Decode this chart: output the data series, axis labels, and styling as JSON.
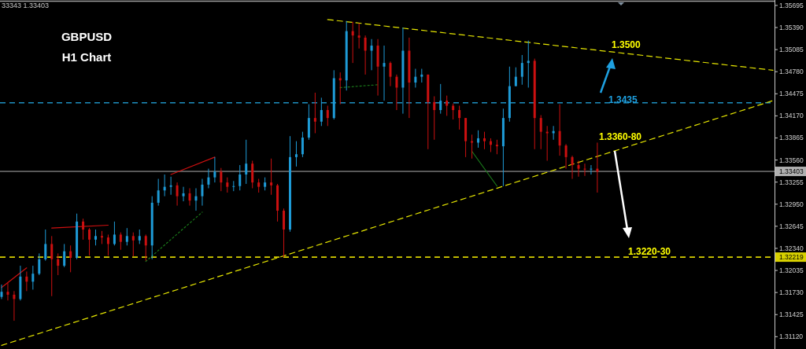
{
  "chart_data": {
    "type": "candlestick",
    "title": "GBPUSD",
    "subtitle": "H1 Chart",
    "annotations": [
      "33343 1.33403",
      "1.3500",
      "1.3435",
      "1.3360-80",
      "1.3220-30"
    ],
    "categories": [
      null,
      null,
      null,
      null,
      null,
      null,
      null,
      null,
      null,
      null,
      null,
      null,
      null,
      null,
      null,
      null,
      null,
      null,
      null,
      null,
      null,
      null,
      null,
      null,
      null,
      null,
      null,
      null,
      null,
      null,
      null,
      null,
      null,
      null,
      null,
      null,
      null,
      null,
      null,
      null,
      null,
      null,
      null,
      null,
      null,
      null,
      null,
      null,
      null,
      null,
      null,
      null,
      null,
      null,
      null,
      null,
      null,
      null,
      null,
      null,
      null,
      null,
      null,
      null,
      null,
      null,
      null,
      null,
      null,
      null,
      null,
      null,
      null,
      null,
      null,
      null,
      null,
      null,
      null,
      null,
      null,
      null,
      null,
      null,
      null,
      null,
      null,
      null,
      null,
      null,
      null,
      null,
      null,
      null,
      null,
      null,
      null,
      null,
      null,
      null,
      null,
      null,
      null,
      null,
      null,
      null,
      null,
      null,
      null,
      null,
      null,
      null,
      null,
      null,
      null,
      null,
      null,
      null,
      null,
      null,
      null,
      null,
      null,
      null
    ],
    "ohlc": [
      [
        1.3167,
        1.3184,
        1.3164,
        1.3174
      ],
      [
        1.3174,
        1.3186,
        1.3162,
        1.317
      ],
      [
        1.317,
        1.3175,
        1.3134,
        1.3164
      ],
      [
        1.3164,
        1.321,
        1.3162,
        1.3195
      ],
      [
        1.3195,
        1.3202,
        1.3175,
        1.3188
      ],
      [
        1.3188,
        1.321,
        1.3177,
        1.3199
      ],
      [
        1.3199,
        1.3227,
        1.3197,
        1.3219
      ],
      [
        1.3219,
        1.326,
        1.3217,
        1.324
      ],
      [
        1.324,
        1.3251,
        1.3168,
        1.3219
      ],
      [
        1.3219,
        1.3227,
        1.3197,
        1.321
      ],
      [
        1.321,
        1.324,
        1.3208,
        1.323
      ],
      [
        1.323,
        1.3238,
        1.3201,
        1.3221
      ],
      [
        1.3221,
        1.3282,
        1.3219,
        1.3271
      ],
      [
        1.3271,
        1.3275,
        1.3246,
        1.326
      ],
      [
        1.326,
        1.3262,
        1.3224,
        1.3246
      ],
      [
        1.3246,
        1.326,
        1.3238,
        1.3251
      ],
      [
        1.3251,
        1.3258,
        1.324,
        1.3249
      ],
      [
        1.3249,
        1.3253,
        1.3224,
        1.324
      ],
      [
        1.324,
        1.3271,
        1.3238,
        1.3253
      ],
      [
        1.3253,
        1.3256,
        1.3232,
        1.3243
      ],
      [
        1.3243,
        1.3262,
        1.3238,
        1.3251
      ],
      [
        1.3251,
        1.3256,
        1.3223,
        1.3245
      ],
      [
        1.3245,
        1.326,
        1.324,
        1.3251
      ],
      [
        1.3251,
        1.3253,
        1.3217,
        1.3238
      ],
      [
        1.3238,
        1.3306,
        1.3219,
        1.3297
      ],
      [
        1.3297,
        1.333,
        1.3293,
        1.3314
      ],
      [
        1.3314,
        1.3336,
        1.3306,
        1.3319
      ],
      [
        1.3319,
        1.3333,
        1.3308,
        1.3321
      ],
      [
        1.3321,
        1.3325,
        1.3293,
        1.3306
      ],
      [
        1.3306,
        1.3319,
        1.3299,
        1.331
      ],
      [
        1.331,
        1.3317,
        1.3293,
        1.33
      ],
      [
        1.33,
        1.3317,
        1.3286,
        1.3306
      ],
      [
        1.3306,
        1.333,
        1.3293,
        1.3322
      ],
      [
        1.3322,
        1.3344,
        1.3317,
        1.3332
      ],
      [
        1.3332,
        1.336,
        1.3325,
        1.334
      ],
      [
        1.334,
        1.3345,
        1.3313,
        1.3325
      ],
      [
        1.3325,
        1.3332,
        1.3311,
        1.3319
      ],
      [
        1.3319,
        1.3327,
        1.3313,
        1.332
      ],
      [
        1.332,
        1.3349,
        1.3314,
        1.3336
      ],
      [
        1.3336,
        1.3384,
        1.3323,
        1.3351
      ],
      [
        1.3351,
        1.3355,
        1.3317,
        1.3325
      ],
      [
        1.3325,
        1.333,
        1.3311,
        1.3319
      ],
      [
        1.3319,
        1.3332,
        1.3314,
        1.3325
      ],
      [
        1.3325,
        1.3358,
        1.3308,
        1.3321
      ],
      [
        1.3321,
        1.3323,
        1.3271,
        1.3286
      ],
      [
        1.3286,
        1.3289,
        1.3222,
        1.326
      ],
      [
        1.326,
        1.3389,
        1.3257,
        1.336
      ],
      [
        1.336,
        1.3382,
        1.3347,
        1.3364
      ],
      [
        1.3364,
        1.3395,
        1.336,
        1.3387
      ],
      [
        1.3387,
        1.3433,
        1.3384,
        1.3414
      ],
      [
        1.3414,
        1.3449,
        1.3393,
        1.3409
      ],
      [
        1.3409,
        1.3442,
        1.3403,
        1.3425
      ],
      [
        1.3425,
        1.3431,
        1.3403,
        1.3414
      ],
      [
        1.3414,
        1.348,
        1.3412,
        1.3469
      ],
      [
        1.3469,
        1.3477,
        1.3433,
        1.3466
      ],
      [
        1.3466,
        1.3548,
        1.3452,
        1.3534
      ],
      [
        1.3534,
        1.3547,
        1.349,
        1.3528
      ],
      [
        1.3528,
        1.3545,
        1.351,
        1.3525
      ],
      [
        1.3525,
        1.3528,
        1.3474,
        1.3507
      ],
      [
        1.3507,
        1.3523,
        1.348,
        1.3514
      ],
      [
        1.3514,
        1.3523,
        1.3445,
        1.3485
      ],
      [
        1.3485,
        1.3514,
        1.3438,
        1.349
      ],
      [
        1.349,
        1.3492,
        1.3458,
        1.3471
      ],
      [
        1.3471,
        1.3474,
        1.3425,
        1.3456
      ],
      [
        1.3456,
        1.3539,
        1.342,
        1.3507
      ],
      [
        1.3507,
        1.3525,
        1.3414,
        1.3463
      ],
      [
        1.3463,
        1.3482,
        1.3456,
        1.3471
      ],
      [
        1.3471,
        1.3482,
        1.3463,
        1.3474
      ],
      [
        1.3474,
        1.3474,
        1.3371,
        1.3436
      ],
      [
        1.3436,
        1.3444,
        1.3384,
        1.3425
      ],
      [
        1.3425,
        1.3461,
        1.342,
        1.3438
      ],
      [
        1.3438,
        1.3445,
        1.3417,
        1.3431
      ],
      [
        1.3431,
        1.3434,
        1.3412,
        1.3425
      ],
      [
        1.3425,
        1.3431,
        1.3398,
        1.3414
      ],
      [
        1.3414,
        1.3414,
        1.336,
        1.3382
      ],
      [
        1.3382,
        1.3391,
        1.3358,
        1.338
      ],
      [
        1.338,
        1.3397,
        1.3373,
        1.3386
      ],
      [
        1.3386,
        1.3395,
        1.3371,
        1.3382
      ],
      [
        1.3382,
        1.3386,
        1.3367,
        1.3377
      ],
      [
        1.3377,
        1.3384,
        1.3364,
        1.3375
      ],
      [
        1.3375,
        1.3427,
        1.332,
        1.3414
      ],
      [
        1.3414,
        1.3485,
        1.3409,
        1.3458
      ],
      [
        1.3458,
        1.3484,
        1.3458,
        1.3471
      ],
      [
        1.3471,
        1.3501,
        1.346,
        1.349
      ],
      [
        1.349,
        1.3521,
        1.3456,
        1.3493
      ],
      [
        1.3493,
        1.3496,
        1.3371,
        1.3414
      ],
      [
        1.3414,
        1.3418,
        1.3371,
        1.3395
      ],
      [
        1.3395,
        1.3403,
        1.3355,
        1.3393
      ],
      [
        1.3393,
        1.3403,
        1.3384,
        1.3396
      ],
      [
        1.3396,
        1.3433,
        1.3362,
        1.3376
      ],
      [
        1.3376,
        1.3378,
        1.3344,
        1.336
      ],
      [
        1.336,
        1.3362,
        1.333,
        1.3349
      ],
      [
        1.3349,
        1.3355,
        1.3333,
        1.3344
      ],
      [
        1.3344,
        1.3351,
        1.3334,
        1.3343
      ],
      [
        1.3343,
        1.3349,
        1.3336,
        1.3344
      ],
      [
        1.3344,
        1.338,
        1.3311,
        1.334
      ],
      null,
      null,
      null,
      null,
      null,
      null,
      null,
      null,
      null,
      null,
      null,
      null,
      null,
      null,
      null,
      null,
      null,
      null,
      null,
      null,
      null,
      null,
      null,
      null,
      null,
      null,
      null,
      null
    ],
    "colors": [
      "#1e9bd7",
      "#cc1010",
      "#cc1010",
      "#1e9bd7",
      "#cc1010",
      "#1e9bd7",
      "#1e9bd7",
      "#1e9bd7",
      "#cc1010",
      "#cc1010",
      "#1e9bd7",
      "#cc1010",
      "#1e9bd7",
      "#cc1010",
      "#cc1010",
      "#1e9bd7",
      "#cc1010",
      "#cc1010",
      "#1e9bd7",
      "#cc1010",
      "#1e9bd7",
      "#cc1010",
      "#1e9bd7",
      "#cc1010",
      "#1e9bd7",
      "#1e9bd7",
      "#1e9bd7",
      "#1e9bd7",
      "#cc1010",
      "#1e9bd7",
      "#cc1010",
      "#1e9bd7",
      "#1e9bd7",
      "#1e9bd7",
      "#1e9bd7",
      "#cc1010",
      "#cc1010",
      "#1e9bd7",
      "#1e9bd7",
      "#1e9bd7",
      "#cc1010",
      "#cc1010",
      "#1e9bd7",
      "#cc1010",
      "#cc1010",
      "#cc1010",
      "#1e9bd7",
      "#1e9bd7",
      "#1e9bd7",
      "#1e9bd7",
      "#cc1010",
      "#1e9bd7",
      "#cc1010",
      "#1e9bd7",
      "#cc1010",
      "#1e9bd7",
      "#cc1010",
      "#cc1010",
      "#cc1010",
      "#1e9bd7",
      "#cc1010",
      "#1e9bd7",
      "#cc1010",
      "#cc1010",
      "#1e9bd7",
      "#cc1010",
      "#1e9bd7",
      "#1e9bd7",
      "#cc1010",
      "#cc1010",
      "#1e9bd7",
      "#cc1010",
      "#cc1010",
      "#cc1010",
      "#cc1010",
      "#cc1010",
      "#1e9bd7",
      "#cc1010",
      "#cc1010",
      "#cc1010",
      "#1e9bd7",
      "#1e9bd7",
      "#1e9bd7",
      "#1e9bd7",
      "#1e9bd7",
      "#cc1010",
      "#cc1010",
      "#cc1010",
      "#1e9bd7",
      "#cc1010",
      "#cc1010",
      "#cc1010",
      "#cc1010",
      "#cc1010",
      "#1e9bd7",
      "#cc1010",
      null,
      null,
      null,
      null,
      null,
      null,
      null,
      null,
      null,
      null,
      null,
      null,
      null,
      null,
      null,
      null,
      null,
      null,
      null,
      null,
      null,
      null,
      null,
      null,
      null,
      null,
      null,
      null
    ],
    "series": [
      {
        "type": "line",
        "color": "#e6e600",
        "line_style": "dashed",
        "values": [
          null,
          null,
          null,
          null,
          null,
          null,
          null,
          null,
          null,
          null,
          null,
          null,
          null,
          null,
          null,
          null,
          null,
          null,
          null,
          null,
          null,
          null,
          null,
          null,
          null,
          null,
          null,
          null,
          null,
          null,
          null,
          null,
          null,
          null,
          null,
          null,
          null,
          null,
          null,
          null,
          null,
          null,
          null,
          null,
          null,
          null,
          null,
          null,
          null,
          null,
          null,
          null,
          1.355,
          null,
          null,
          null,
          null,
          null,
          null,
          null,
          null,
          null,
          null,
          null,
          null,
          null,
          null,
          null,
          null,
          null,
          null,
          null,
          null,
          null,
          null,
          null,
          null,
          null,
          null,
          null,
          null,
          null,
          null,
          null,
          null,
          null,
          null,
          null,
          null,
          null,
          null,
          null,
          null,
          null,
          null,
          null,
          null,
          null,
          null,
          null,
          null,
          null,
          null,
          null,
          null,
          null,
          null,
          null,
          null,
          null,
          null,
          null,
          null,
          null,
          null,
          null,
          null,
          null,
          null,
          null,
          null,
          null,
          null,
          1.348
        ]
      },
      {
        "type": "line",
        "color": "#e6e600",
        "line_style": "dashed",
        "values": [
          1.31,
          null,
          null,
          null,
          null,
          null,
          null,
          null,
          null,
          null,
          null,
          null,
          null,
          null,
          null,
          null,
          null,
          null,
          null,
          null,
          null,
          null,
          null,
          null,
          null,
          null,
          null,
          null,
          null,
          null,
          null,
          null,
          null,
          null,
          null,
          null,
          null,
          null,
          null,
          null,
          null,
          null,
          null,
          null,
          null,
          null,
          null,
          null,
          null,
          null,
          null,
          null,
          null,
          null,
          null,
          null,
          null,
          null,
          null,
          null,
          null,
          null,
          null,
          null,
          null,
          null,
          null,
          null,
          null,
          null,
          null,
          null,
          null,
          null,
          null,
          null,
          null,
          null,
          null,
          null,
          null,
          null,
          null,
          null,
          null,
          null,
          null,
          null,
          null,
          null,
          null,
          null,
          null,
          null,
          null,
          null,
          null,
          null,
          null,
          null,
          null,
          null,
          null,
          null,
          null,
          null,
          null,
          null,
          null,
          null,
          null,
          null,
          null,
          null,
          null,
          null,
          null,
          null,
          null,
          null,
          null,
          null,
          null,
          1.3438
        ]
      },
      {
        "type": "line",
        "color": "#d01010",
        "line_style": "solid",
        "values": [
          1.318,
          null,
          null,
          null,
          1.3207,
          null,
          null,
          null,
          null,
          null,
          null,
          null,
          null,
          null,
          null,
          null,
          null,
          null,
          null,
          null,
          null,
          null,
          null,
          null,
          null,
          null,
          null,
          null,
          null,
          null,
          null,
          null,
          null,
          null,
          null,
          null,
          null,
          null,
          null,
          null,
          null,
          null,
          null,
          null,
          null,
          null,
          null,
          null,
          null,
          null,
          null,
          null,
          null,
          null,
          null,
          null,
          null,
          null,
          null,
          null,
          null,
          null,
          null,
          null,
          null,
          null,
          null,
          null,
          null,
          null,
          null,
          null,
          null,
          null,
          null,
          null,
          null,
          null,
          null,
          null,
          null,
          null,
          null,
          null,
          null,
          null,
          null,
          null,
          null,
          null,
          null,
          null,
          null,
          null,
          null,
          null,
          null,
          null,
          null,
          null,
          null,
          null,
          null,
          null,
          null,
          null,
          null,
          null,
          null,
          null,
          null,
          null,
          null,
          null,
          null,
          null,
          null,
          null,
          null,
          null,
          null,
          null,
          null,
          null
        ]
      },
      {
        "type": "line",
        "color": "#d01010",
        "line_style": "solid",
        "values": [
          null,
          null,
          null,
          null,
          null,
          null,
          null,
          null,
          1.3262,
          null,
          null,
          null,
          null,
          null,
          null,
          null,
          null,
          1.3266,
          null,
          null,
          null,
          null,
          null,
          null,
          null,
          null,
          null,
          null,
          null,
          null,
          null,
          null,
          null,
          null,
          null,
          null,
          null,
          null,
          null,
          null,
          null,
          null,
          null,
          null,
          null,
          null,
          null,
          null,
          null,
          null,
          null,
          null,
          null,
          null,
          null,
          null,
          null,
          null,
          null,
          null,
          null,
          null,
          null,
          null,
          null,
          null,
          null,
          null,
          null,
          null,
          null,
          null,
          null,
          null,
          null,
          null,
          null,
          null,
          null,
          null,
          null,
          null,
          null,
          null,
          null,
          null,
          null,
          null,
          null,
          null,
          null,
          null,
          null,
          null,
          null,
          null,
          null,
          null,
          null,
          null,
          null,
          null,
          null,
          null,
          null,
          null,
          null,
          null,
          null,
          null,
          null,
          null,
          null,
          null,
          null,
          null,
          null,
          null,
          null,
          null,
          null,
          null,
          null,
          null
        ]
      },
      {
        "type": "line",
        "color": "#d01010",
        "line_style": "solid",
        "values": [
          null,
          null,
          null,
          null,
          null,
          null,
          null,
          null,
          null,
          null,
          null,
          null,
          null,
          null,
          null,
          null,
          null,
          null,
          null,
          null,
          null,
          null,
          null,
          null,
          null,
          null,
          null,
          1.3336,
          null,
          null,
          null,
          null,
          null,
          null,
          1.336,
          null,
          null,
          null,
          null,
          null,
          null,
          null,
          null,
          null,
          null,
          null,
          null,
          null,
          null,
          null,
          null,
          null,
          null,
          null,
          null,
          null,
          null,
          null,
          null,
          null,
          null,
          null,
          null,
          null,
          null,
          null,
          null,
          null,
          null,
          null,
          null,
          null,
          null,
          null,
          null,
          null,
          null,
          null,
          null,
          null,
          null,
          null,
          null,
          null,
          null,
          null,
          null,
          null,
          null,
          null,
          null,
          null,
          null,
          null,
          null,
          null,
          null,
          null,
          null,
          null,
          null,
          null,
          null,
          null,
          null,
          null,
          null,
          null,
          null,
          null,
          null,
          null,
          null,
          null,
          null,
          null,
          null,
          null,
          null,
          null,
          null,
          null,
          null,
          null
        ]
      },
      {
        "type": "line",
        "color": "#1a7a1a",
        "line_style": "dotted",
        "values": [
          null,
          null,
          null,
          null,
          null,
          null,
          null,
          null,
          null,
          null,
          null,
          null,
          null,
          null,
          null,
          null,
          null,
          null,
          null,
          null,
          null,
          null,
          null,
          1.3216,
          null,
          null,
          null,
          null,
          null,
          null,
          null,
          null,
          1.3284,
          null,
          null,
          null,
          null,
          null,
          null,
          null,
          null,
          null,
          null,
          null,
          null,
          null,
          null,
          null,
          null,
          null,
          null,
          null,
          null,
          null,
          null,
          null,
          null,
          null,
          null,
          null,
          null,
          null,
          null,
          null,
          null,
          null,
          null,
          null,
          null,
          null,
          null,
          null,
          null,
          null,
          null,
          null,
          null,
          null,
          null,
          null,
          null,
          null,
          null,
          null,
          null,
          null,
          null,
          null,
          null,
          null,
          null,
          null,
          null,
          null,
          null,
          null,
          null,
          null,
          null,
          null,
          null,
          null,
          null,
          null,
          null,
          null,
          null,
          null,
          null,
          null,
          null,
          null,
          null,
          null,
          null,
          null,
          null,
          null,
          null,
          null,
          null,
          null,
          null,
          null
        ]
      },
      {
        "type": "line",
        "color": "#1a7a1a",
        "line_style": "dotted",
        "values": [
          null,
          null,
          null,
          null,
          null,
          null,
          null,
          null,
          null,
          null,
          null,
          null,
          null,
          null,
          null,
          null,
          null,
          null,
          null,
          null,
          null,
          null,
          null,
          null,
          null,
          null,
          null,
          null,
          null,
          null,
          null,
          null,
          null,
          null,
          null,
          null,
          null,
          null,
          null,
          null,
          null,
          null,
          null,
          null,
          null,
          null,
          null,
          null,
          null,
          null,
          null,
          null,
          null,
          null,
          1.3456,
          null,
          null,
          null,
          null,
          null,
          1.346,
          null,
          null,
          null,
          null,
          null,
          null,
          null,
          null,
          null,
          null,
          null,
          null,
          null,
          null,
          null,
          null,
          null,
          null,
          null,
          null,
          null,
          null,
          null,
          null,
          null,
          null,
          null,
          null,
          null,
          null,
          null,
          null,
          null,
          null,
          null,
          null,
          null,
          null,
          null,
          null,
          null,
          null,
          null,
          null,
          null,
          null,
          null,
          null,
          null,
          null,
          null,
          null,
          null,
          null,
          null,
          null,
          null,
          null,
          null,
          null,
          null,
          null,
          null
        ]
      },
      {
        "type": "line",
        "color": "#1a7a1a",
        "line_style": "solid",
        "values": [
          null,
          null,
          null,
          null,
          null,
          null,
          null,
          null,
          null,
          null,
          null,
          null,
          null,
          null,
          null,
          null,
          null,
          null,
          null,
          null,
          null,
          null,
          null,
          null,
          null,
          null,
          null,
          null,
          null,
          null,
          null,
          null,
          null,
          null,
          null,
          null,
          null,
          null,
          null,
          null,
          null,
          null,
          null,
          null,
          null,
          null,
          null,
          null,
          null,
          null,
          null,
          null,
          null,
          null,
          null,
          null,
          null,
          null,
          null,
          null,
          null,
          null,
          null,
          null,
          null,
          null,
          null,
          null,
          null,
          null,
          null,
          null,
          null,
          null,
          null,
          1.3368,
          null,
          null,
          null,
          1.332,
          null,
          null,
          null,
          null,
          null,
          null,
          null,
          null,
          null,
          null,
          null,
          null,
          null,
          null,
          null,
          null,
          null,
          null,
          null,
          null,
          null,
          null,
          null,
          null,
          null,
          null,
          null,
          null,
          null,
          null,
          null,
          null,
          null,
          null,
          null,
          null,
          null,
          null,
          null,
          null,
          null,
          null,
          null,
          null
        ]
      }
    ],
    "ref_lines": [
      {
        "axis": "y",
        "value": 1.3435,
        "color": "#1e8fc0",
        "line_style": "dashed"
      },
      {
        "axis": "y",
        "value": 1.32219,
        "label": "1.32219",
        "color": "#d8d000",
        "line_style": "dashed"
      },
      {
        "axis": "y",
        "value": 1.33403,
        "label": "1.33403",
        "color": "#b0b0b0",
        "line_style": "solid"
      }
    ],
    "ylim": [
      1.3095,
      1.3577
    ],
    "yticks": [
      1.35695,
      {
        "value": 1.3539,
        "label": "1.35390"
      },
      1.35085,
      {
        "value": 1.3478,
        "label": "1.34780"
      },
      1.34475,
      {
        "value": 1.3417,
        "label": "1.34170"
      },
      1.33865,
      {
        "value": 1.3356,
        "label": "1.33560"
      },
      1.33255,
      {
        "value": 1.3295,
        "label": "1.32950"
      },
      1.32645,
      {
        "value": 1.3234,
        "label": "1.32340"
      },
      1.32035,
      {
        "value": 1.3173,
        "label": "1.31730"
      },
      1.31425,
      {
        "value": 1.3112,
        "label": "1.31120"
      }
    ],
    "tick_labels": "y",
    "grid": false
  }
}
